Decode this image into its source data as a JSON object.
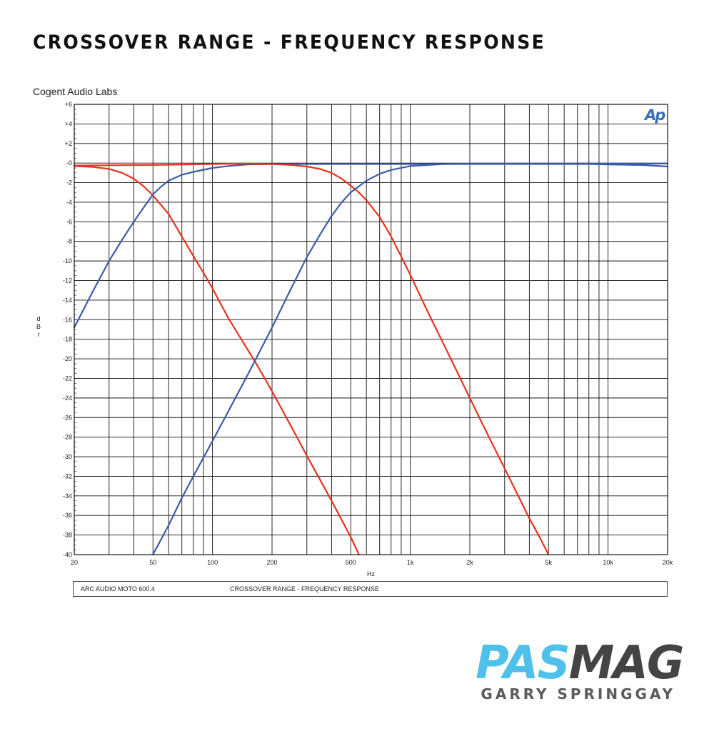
{
  "page": {
    "title": "CROSSOVER RANGE - FREQUENCY RESPONSE",
    "company": "Cogent Audio Labs",
    "footer_left": "ARC AUDIO  MOTO 600.4",
    "footer_right": "CROSSOVER RANGE  -  FREQUENCY RESPONSE",
    "ap_logo": "Ap",
    "brand_pas": "PAS",
    "brand_mag": "MAG",
    "brand_author": "GARRY SPRINGGAY"
  },
  "colors": {
    "red": "#e8321e",
    "blue": "#3a5ca8",
    "grid": "#111111",
    "pas": "#4fc0ea",
    "mag": "#444444"
  },
  "chart_data": {
    "type": "line",
    "xscale": "log",
    "xlim": [
      20,
      20000
    ],
    "ylim": [
      -40,
      6
    ],
    "xlabel": "Hz",
    "ylabel": "dBr",
    "ylabel_chars": [
      "d",
      "B",
      "r"
    ],
    "xticks": [
      {
        "value": 20,
        "label": "20"
      },
      {
        "value": 50,
        "label": "50"
      },
      {
        "value": 100,
        "label": "100"
      },
      {
        "value": 200,
        "label": "200"
      },
      {
        "value": 500,
        "label": "500"
      },
      {
        "value": 1000,
        "label": "1k"
      },
      {
        "value": 2000,
        "label": "2k"
      },
      {
        "value": 5000,
        "label": "5k"
      },
      {
        "value": 10000,
        "label": "10k"
      },
      {
        "value": 20000,
        "label": "20k"
      }
    ],
    "yticks": [
      {
        "value": 6,
        "label": "+6"
      },
      {
        "value": 4,
        "label": "+4"
      },
      {
        "value": 2,
        "label": "+2"
      },
      {
        "value": 0,
        "label": "-0"
      },
      {
        "value": -2,
        "label": "-2"
      },
      {
        "value": -4,
        "label": "-4"
      },
      {
        "value": -6,
        "label": "-6"
      },
      {
        "value": -8,
        "label": "-8"
      },
      {
        "value": -10,
        "label": "-10"
      },
      {
        "value": -12,
        "label": "-12"
      },
      {
        "value": -14,
        "label": "-14"
      },
      {
        "value": -16,
        "label": "-16"
      },
      {
        "value": -18,
        "label": "-18"
      },
      {
        "value": -20,
        "label": "-20"
      },
      {
        "value": -22,
        "label": "-22"
      },
      {
        "value": -24,
        "label": "-24"
      },
      {
        "value": -26,
        "label": "-26"
      },
      {
        "value": -28,
        "label": "-28"
      },
      {
        "value": -30,
        "label": "-30"
      },
      {
        "value": -32,
        "label": "-32"
      },
      {
        "value": -34,
        "label": "-34"
      },
      {
        "value": -36,
        "label": "-36"
      },
      {
        "value": -38,
        "label": "-38"
      },
      {
        "value": -40,
        "label": "-40"
      }
    ],
    "grid": true,
    "series": [
      {
        "color": "red",
        "points": [
          [
            20,
            -0.3
          ],
          [
            25,
            -0.4
          ],
          [
            30,
            -0.6
          ],
          [
            35,
            -1.0
          ],
          [
            40,
            -1.6
          ],
          [
            45,
            -2.4
          ],
          [
            50,
            -3.3
          ],
          [
            60,
            -5.2
          ],
          [
            70,
            -7.5
          ],
          [
            80,
            -9.5
          ],
          [
            90,
            -11.2
          ],
          [
            100,
            -12.8
          ],
          [
            120,
            -15.8
          ],
          [
            150,
            -19.0
          ],
          [
            170,
            -20.8
          ],
          [
            200,
            -23.3
          ],
          [
            250,
            -26.9
          ],
          [
            300,
            -29.9
          ],
          [
            400,
            -34.5
          ],
          [
            500,
            -38.2
          ],
          [
            550,
            -40.0
          ]
        ]
      },
      {
        "color": "blue",
        "points": [
          [
            20,
            -16.8
          ],
          [
            25,
            -13.0
          ],
          [
            30,
            -10.0
          ],
          [
            35,
            -7.8
          ],
          [
            40,
            -6.0
          ],
          [
            45,
            -4.5
          ],
          [
            50,
            -3.2
          ],
          [
            55,
            -2.4
          ],
          [
            60,
            -1.8
          ],
          [
            70,
            -1.2
          ],
          [
            80,
            -0.9
          ],
          [
            100,
            -0.5
          ],
          [
            120,
            -0.3
          ],
          [
            150,
            -0.15
          ],
          [
            200,
            -0.1
          ],
          [
            500,
            -0.1
          ],
          [
            1000,
            -0.1
          ],
          [
            2000,
            -0.1
          ],
          [
            5000,
            -0.1
          ],
          [
            8000,
            -0.1
          ],
          [
            10000,
            -0.15
          ],
          [
            15000,
            -0.2
          ],
          [
            20000,
            -0.35
          ]
        ]
      },
      {
        "color": "red",
        "points": [
          [
            20,
            -0.25
          ],
          [
            50,
            -0.2
          ],
          [
            100,
            -0.1
          ],
          [
            150,
            -0.05
          ],
          [
            200,
            -0.1
          ],
          [
            250,
            -0.2
          ],
          [
            300,
            -0.35
          ],
          [
            350,
            -0.6
          ],
          [
            400,
            -1.0
          ],
          [
            450,
            -1.6
          ],
          [
            500,
            -2.3
          ],
          [
            550,
            -3.0
          ],
          [
            600,
            -3.8
          ],
          [
            700,
            -5.5
          ],
          [
            800,
            -7.5
          ],
          [
            1000,
            -11.4
          ],
          [
            1200,
            -14.8
          ],
          [
            1500,
            -18.8
          ],
          [
            2000,
            -24.0
          ],
          [
            2500,
            -28.0
          ],
          [
            3000,
            -31.2
          ],
          [
            4000,
            -36.3
          ],
          [
            4500,
            -38.2
          ],
          [
            5000,
            -40.0
          ]
        ]
      },
      {
        "color": "blue",
        "points": [
          [
            50,
            -40.0
          ],
          [
            60,
            -37.0
          ],
          [
            70,
            -34.2
          ],
          [
            80,
            -32.0
          ],
          [
            100,
            -28.4
          ],
          [
            120,
            -25.4
          ],
          [
            150,
            -21.7
          ],
          [
            200,
            -16.8
          ],
          [
            250,
            -12.8
          ],
          [
            300,
            -9.6
          ],
          [
            350,
            -7.3
          ],
          [
            400,
            -5.4
          ],
          [
            450,
            -4.0
          ],
          [
            500,
            -3.0
          ],
          [
            600,
            -1.8
          ],
          [
            700,
            -1.1
          ],
          [
            800,
            -0.7
          ],
          [
            1000,
            -0.3
          ],
          [
            1500,
            -0.1
          ],
          [
            2000,
            -0.05
          ],
          [
            5000,
            -0.05
          ],
          [
            10000,
            -0.05
          ],
          [
            20000,
            -0.05
          ]
        ]
      }
    ]
  }
}
